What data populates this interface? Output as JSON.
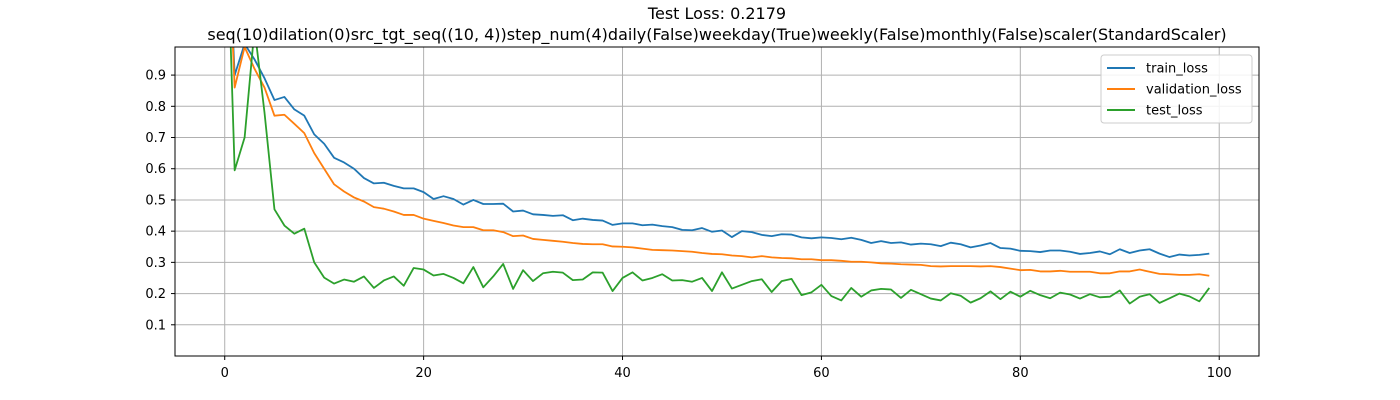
{
  "chart_data": {
    "type": "line",
    "title": "Test Loss: 0.2179",
    "subtitle": "seq(10)dilation(0)src_tgt_seq((10, 4))step_num(4)daily(False)weekday(True)weekly(False)monthly(False)scaler(StandardScaler)",
    "xlabel": "",
    "ylabel": "",
    "xlim": [
      -5,
      104
    ],
    "ylim": [
      0.0,
      0.99
    ],
    "xticks": [
      0,
      20,
      40,
      60,
      80,
      100
    ],
    "yticks": [
      0.1,
      0.2,
      0.3,
      0.4,
      0.5,
      0.6,
      0.7,
      0.8,
      0.9
    ],
    "grid": true,
    "legend_position": "top-right",
    "x": [
      0,
      1,
      2,
      3,
      4,
      5,
      6,
      7,
      8,
      9,
      10,
      11,
      12,
      13,
      14,
      15,
      16,
      17,
      18,
      19,
      20,
      21,
      22,
      23,
      24,
      25,
      26,
      27,
      28,
      29,
      30,
      31,
      32,
      33,
      34,
      35,
      36,
      37,
      38,
      39,
      40,
      41,
      42,
      43,
      44,
      45,
      46,
      47,
      48,
      49,
      50,
      51,
      52,
      53,
      54,
      55,
      56,
      57,
      58,
      59,
      60,
      61,
      62,
      63,
      64,
      65,
      66,
      67,
      68,
      69,
      70,
      71,
      72,
      73,
      74,
      75,
      76,
      77,
      78,
      79,
      80,
      81,
      82,
      83,
      84,
      85,
      86,
      87,
      88,
      89,
      90,
      91,
      92,
      93,
      94,
      95,
      96,
      97,
      98,
      99
    ],
    "series": [
      {
        "name": "train_loss",
        "color": "#1f77b4",
        "values": [
          1.6,
          0.9,
          1.0,
          0.95,
          0.89,
          0.82,
          0.83,
          0.79,
          0.77,
          0.71,
          0.68,
          0.635,
          0.62,
          0.6,
          0.57,
          0.553,
          0.555,
          0.545,
          0.537,
          0.537,
          0.525,
          0.503,
          0.512,
          0.503,
          0.485,
          0.5,
          0.487,
          0.487,
          0.488,
          0.463,
          0.466,
          0.454,
          0.452,
          0.449,
          0.451,
          0.435,
          0.44,
          0.436,
          0.434,
          0.42,
          0.425,
          0.425,
          0.419,
          0.421,
          0.416,
          0.413,
          0.404,
          0.403,
          0.41,
          0.398,
          0.402,
          0.381,
          0.4,
          0.397,
          0.388,
          0.384,
          0.39,
          0.389,
          0.38,
          0.377,
          0.38,
          0.378,
          0.374,
          0.379,
          0.372,
          0.362,
          0.368,
          0.362,
          0.364,
          0.357,
          0.36,
          0.358,
          0.352,
          0.363,
          0.358,
          0.348,
          0.354,
          0.362,
          0.346,
          0.344,
          0.337,
          0.336,
          0.333,
          0.338,
          0.338,
          0.334,
          0.327,
          0.33,
          0.335,
          0.326,
          0.342,
          0.33,
          0.338,
          0.342,
          0.328,
          0.317,
          0.325,
          0.322,
          0.324,
          0.328
        ]
      },
      {
        "name": "validation_loss",
        "color": "#ff7f0e",
        "values": [
          1.6,
          0.86,
          0.99,
          0.92,
          0.86,
          0.77,
          0.773,
          0.744,
          0.714,
          0.65,
          0.6,
          0.55,
          0.527,
          0.508,
          0.495,
          0.477,
          0.472,
          0.463,
          0.452,
          0.452,
          0.44,
          0.433,
          0.426,
          0.418,
          0.413,
          0.413,
          0.403,
          0.403,
          0.397,
          0.384,
          0.386,
          0.375,
          0.372,
          0.369,
          0.366,
          0.362,
          0.359,
          0.358,
          0.358,
          0.351,
          0.35,
          0.348,
          0.344,
          0.34,
          0.339,
          0.338,
          0.336,
          0.334,
          0.33,
          0.327,
          0.326,
          0.322,
          0.32,
          0.316,
          0.32,
          0.316,
          0.314,
          0.313,
          0.31,
          0.31,
          0.307,
          0.307,
          0.305,
          0.302,
          0.302,
          0.3,
          0.297,
          0.296,
          0.294,
          0.293,
          0.292,
          0.288,
          0.287,
          0.288,
          0.288,
          0.288,
          0.287,
          0.288,
          0.285,
          0.28,
          0.275,
          0.276,
          0.271,
          0.271,
          0.273,
          0.27,
          0.27,
          0.27,
          0.265,
          0.265,
          0.271,
          0.271,
          0.277,
          0.27,
          0.263,
          0.262,
          0.26,
          0.26,
          0.262,
          0.257
        ]
      },
      {
        "name": "test_loss",
        "color": "#2ca02c",
        "values": [
          1.6,
          0.595,
          0.7,
          1.05,
          0.78,
          0.47,
          0.418,
          0.392,
          0.408,
          0.3,
          0.251,
          0.232,
          0.245,
          0.238,
          0.255,
          0.218,
          0.242,
          0.255,
          0.225,
          0.282,
          0.277,
          0.258,
          0.263,
          0.25,
          0.233,
          0.285,
          0.22,
          0.255,
          0.295,
          0.215,
          0.275,
          0.24,
          0.265,
          0.27,
          0.267,
          0.243,
          0.245,
          0.268,
          0.267,
          0.208,
          0.25,
          0.268,
          0.242,
          0.25,
          0.262,
          0.242,
          0.243,
          0.238,
          0.25,
          0.208,
          0.268,
          0.216,
          0.228,
          0.24,
          0.246,
          0.205,
          0.24,
          0.247,
          0.195,
          0.204,
          0.228,
          0.192,
          0.178,
          0.218,
          0.19,
          0.21,
          0.215,
          0.213,
          0.186,
          0.212,
          0.198,
          0.184,
          0.178,
          0.201,
          0.193,
          0.171,
          0.185,
          0.207,
          0.182,
          0.206,
          0.19,
          0.209,
          0.195,
          0.185,
          0.203,
          0.197,
          0.184,
          0.198,
          0.188,
          0.19,
          0.21,
          0.168,
          0.19,
          0.198,
          0.17,
          0.185,
          0.2,
          0.191,
          0.175,
          0.218
        ]
      }
    ]
  }
}
